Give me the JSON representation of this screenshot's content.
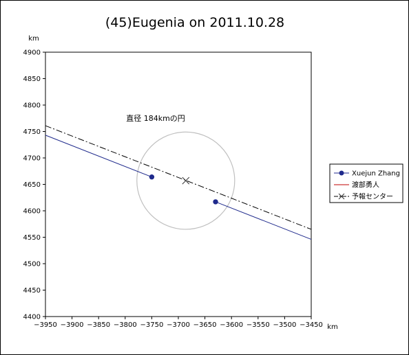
{
  "chart_data": {
    "type": "line",
    "title": "(45)Eugenia on 2011.10.28",
    "xunit": "km",
    "yunit": "km",
    "xlim": [
      -3950,
      -3450
    ],
    "ylim": [
      4400,
      4900
    ],
    "xticks": [
      -3950,
      -3900,
      -3850,
      -3800,
      -3750,
      -3700,
      -3650,
      -3600,
      -3550,
      -3500,
      -3450
    ],
    "yticks": [
      4400,
      4450,
      4500,
      4550,
      4600,
      4650,
      4700,
      4750,
      4800,
      4850,
      4900
    ],
    "grid": false,
    "legend_position": "right",
    "annotation": "直径 184kmの円",
    "circle": {
      "center": [
        -3686,
        4657
      ],
      "diameter": 184
    },
    "series": [
      {
        "name": "Xuejun Zhang",
        "color": "#1f2a8c",
        "style": "solid",
        "marker": "circle",
        "segments": [
          {
            "x": [
              -3950,
              -3750
            ],
            "y": [
              4743,
              4664
            ]
          },
          {
            "x": [
              -3630,
              -3450
            ],
            "y": [
              4617,
              4546
            ]
          }
        ],
        "points": {
          "x": [
            -3750,
            -3630
          ],
          "y": [
            4664,
            4617
          ]
        }
      },
      {
        "name": "渡部勇人",
        "color": "#c00000",
        "style": "solid",
        "marker": "none",
        "segments": [],
        "points": {
          "x": [],
          "y": []
        }
      },
      {
        "name": "予報センター",
        "color": "#000000",
        "style": "dashdot",
        "marker": "x",
        "segments": [
          {
            "x": [
              -3950,
              -3450
            ],
            "y": [
              4761,
              4565
            ]
          }
        ],
        "points": {
          "x": [
            -3686
          ],
          "y": [
            4657
          ]
        }
      }
    ]
  }
}
